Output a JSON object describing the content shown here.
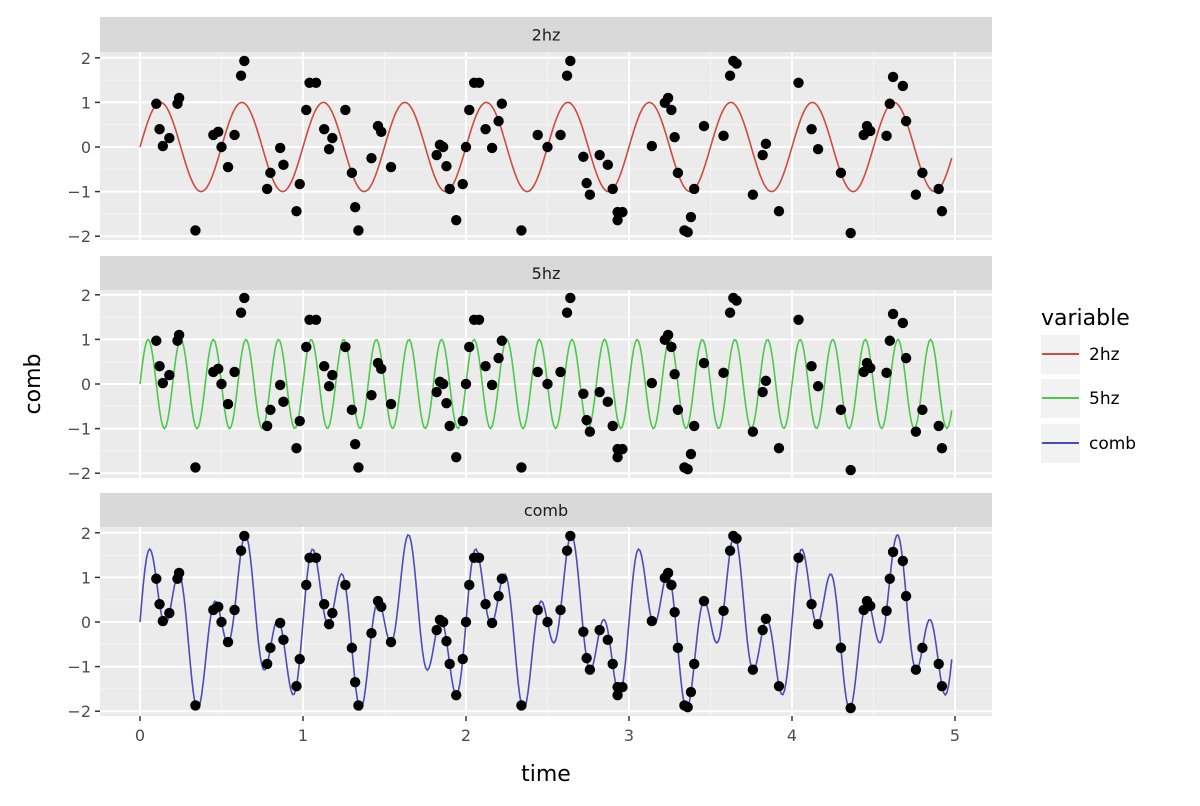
{
  "chart_data": {
    "type": "line",
    "title": "",
    "xlabel": "time",
    "ylabel": "comb",
    "xlim": [
      -0.25,
      5.25
    ],
    "ylim": [
      -2.1,
      2.1
    ],
    "x_ticks": [
      "0",
      "1",
      "2",
      "3",
      "4",
      "5"
    ],
    "y_ticks": [
      "2",
      "1",
      "0",
      "−1",
      "−2"
    ],
    "grid": true,
    "facets": [
      "2hz",
      "5hz",
      "comb"
    ],
    "legend": {
      "title": "variable",
      "position": "right",
      "entries": [
        {
          "label": "2hz",
          "color": "#cc4c41"
        },
        {
          "label": "5hz",
          "color": "#4cc94c"
        },
        {
          "label": "comb",
          "color": "#4c4cb8"
        }
      ]
    },
    "series": [
      {
        "name": "2hz",
        "formula": "sin(2*pi*2*t)",
        "t_range": [
          0,
          4.98
        ],
        "color": "#cc4c41"
      },
      {
        "name": "5hz",
        "formula": "sin(2*pi*5*t)",
        "t_range": [
          0,
          4.98
        ],
        "color": "#4cc94c"
      },
      {
        "name": "comb",
        "formula": "sin(2*pi*2*t)+sin(2*pi*5*t)",
        "t_range": [
          0,
          4.98
        ],
        "color": "#4c4cb8"
      }
    ],
    "points": {
      "description": "scatter points (same in every facet), time vs comb",
      "t": [
        0.1,
        0.12,
        0.14,
        0.18,
        0.23,
        0.24,
        0.34,
        0.45,
        0.48,
        0.5,
        0.54,
        0.58,
        0.62,
        0.64,
        0.78,
        0.8,
        0.86,
        0.88,
        0.96,
        0.98,
        1.02,
        1.04,
        1.08,
        1.13,
        1.18,
        1.16,
        1.26,
        1.3,
        1.32,
        1.34,
        1.42,
        1.46,
        1.48,
        1.54,
        1.82,
        1.84,
        1.86,
        1.88,
        1.9,
        1.94,
        1.98,
        2.0,
        2.02,
        2.05,
        2.08,
        2.12,
        2.16,
        2.2,
        2.22,
        2.34,
        2.44,
        2.5,
        2.58,
        2.62,
        2.64,
        2.72,
        2.74,
        2.76,
        2.82,
        2.87,
        2.9,
        2.93,
        2.93,
        2.96,
        3.14,
        3.22,
        3.24,
        3.26,
        3.28,
        3.3,
        3.34,
        3.36,
        3.38,
        3.4,
        3.46,
        3.58,
        3.62,
        3.64,
        3.66,
        3.76,
        3.82,
        3.84,
        3.92,
        4.04,
        4.12,
        4.16,
        4.3,
        4.36,
        4.44,
        4.46,
        4.48,
        4.58,
        4.6,
        4.62,
        4.68,
        4.7,
        4.76,
        4.8,
        4.9,
        4.92
      ],
      "comb": [
        0.97,
        0.4,
        0.02,
        0.2,
        0.97,
        1.1,
        -1.87,
        0.27,
        0.34,
        0.0,
        -0.45,
        0.27,
        1.6,
        1.93,
        -0.94,
        -0.58,
        -0.02,
        -0.4,
        -1.44,
        -0.83,
        0.83,
        1.44,
        1.44,
        0.4,
        0.2,
        -0.05,
        0.83,
        -0.58,
        -1.35,
        -1.87,
        -0.25,
        0.47,
        0.34,
        -0.45,
        -0.18,
        0.05,
        0.0,
        -0.43,
        -0.94,
        -1.64,
        -0.83,
        0.0,
        0.83,
        1.44,
        1.44,
        0.4,
        -0.02,
        0.58,
        0.97,
        -1.87,
        0.27,
        0.0,
        0.27,
        1.6,
        1.93,
        -0.22,
        -0.81,
        -1.07,
        -0.18,
        -0.4,
        -0.94,
        -1.46,
        -1.64,
        -1.46,
        0.02,
        0.99,
        1.1,
        0.83,
        0.22,
        -0.58,
        -1.87,
        -1.91,
        -1.57,
        -0.94,
        0.47,
        0.25,
        1.6,
        1.93,
        1.87,
        -1.07,
        -0.18,
        0.07,
        -1.44,
        1.44,
        0.4,
        -0.05,
        -0.58,
        -1.93,
        0.27,
        0.47,
        0.36,
        0.25,
        0.97,
        1.57,
        1.37,
        0.58,
        -1.07,
        -0.58,
        -0.94,
        -1.44
      ]
    }
  },
  "colors": {
    "panel_bg": "#ebebeb",
    "strip_bg": "#d9d9d9",
    "grid_major": "#ffffff",
    "point": "#000000"
  }
}
